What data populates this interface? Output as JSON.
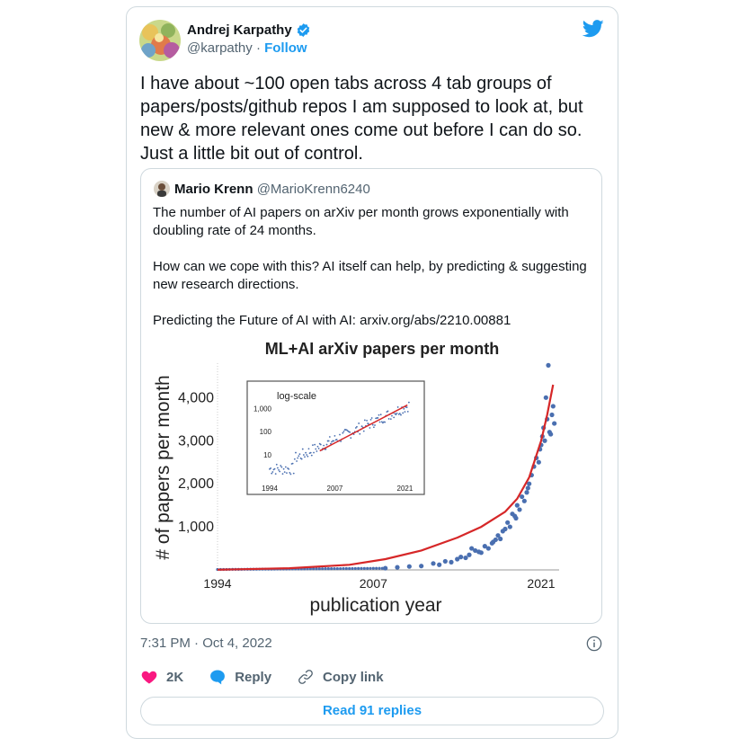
{
  "tweet": {
    "author_name": "Andrej Karpathy",
    "handle": "@karpathy",
    "separator": "·",
    "follow_label": "Follow",
    "text": "I have about ~100 open tabs across 4 tab groups of papers/posts/github repos I am supposed to look at, but new & more relevant ones come out before I can do so. Just a little bit out of control.",
    "timestamp": "7:31 PM · Oct 4, 2022",
    "like_count": "2K",
    "reply_label": "Reply",
    "copy_link_label": "Copy link",
    "read_replies_label": "Read 91 replies",
    "accent_color": "#1d9bf0",
    "like_color": "#f91880"
  },
  "quote": {
    "author_name": "Mario Krenn",
    "handle": "@MarioKrenn6240",
    "paragraphs": [
      "The number of AI papers on arXiv per month grows exponentially with doubling rate of 24 months.",
      "How can we cope with this? AI itself can help, by predicting & suggesting new research directions.",
      "Predicting the Future of AI with AI: arxiv.org/abs/2210.00881"
    ]
  },
  "chart_data": [
    {
      "type": "scatter",
      "title": "ML+AI arXiv papers per month",
      "xlabel": "publication year",
      "ylabel": "# of papers per month",
      "xticks": [
        "1994",
        "2007",
        "2021"
      ],
      "yticks": [
        "1,000",
        "2,000",
        "3,000",
        "4,000"
      ],
      "xlim": [
        1994,
        2022.5
      ],
      "ylim": [
        0,
        4800
      ],
      "fit_line_color": "#d62728",
      "point_color": "#4a6fb0",
      "series": [
        {
          "points": [
            [
              2008,
              40
            ],
            [
              2009,
              60
            ],
            [
              2010,
              80
            ],
            [
              2011,
              90
            ],
            [
              2012,
              150
            ],
            [
              2012.5,
              120
            ],
            [
              2013,
              200
            ],
            [
              2013.5,
              180
            ],
            [
              2014,
              250
            ],
            [
              2014.3,
              300
            ],
            [
              2014.7,
              280
            ],
            [
              2015,
              350
            ],
            [
              2015.2,
              500
            ],
            [
              2015.5,
              450
            ],
            [
              2015.8,
              420
            ],
            [
              2016,
              400
            ],
            [
              2016.3,
              550
            ],
            [
              2016.6,
              500
            ],
            [
              2016.9,
              620
            ],
            [
              2017,
              650
            ],
            [
              2017.2,
              700
            ],
            [
              2017.4,
              800
            ],
            [
              2017.6,
              720
            ],
            [
              2017.8,
              900
            ],
            [
              2018,
              950
            ],
            [
              2018.2,
              1100
            ],
            [
              2018.4,
              1000
            ],
            [
              2018.6,
              1300
            ],
            [
              2018.8,
              1250
            ],
            [
              2019,
              1500
            ],
            [
              2019.2,
              1400
            ],
            [
              2019.4,
              1700
            ],
            [
              2019.6,
              1600
            ],
            [
              2019.8,
              1800
            ],
            [
              2020,
              2000
            ],
            [
              2020.2,
              2200
            ],
            [
              2020.4,
              2400
            ],
            [
              2020.6,
              2600
            ],
            [
              2020.8,
              2500
            ],
            [
              2021,
              2900
            ],
            [
              2021.1,
              3100
            ],
            [
              2021.2,
              3300
            ],
            [
              2021.3,
              3000
            ],
            [
              2021.5,
              3500
            ],
            [
              2021.7,
              3200
            ],
            [
              2021.9,
              3600
            ],
            [
              2022,
              3800
            ],
            [
              2022.1,
              3400
            ],
            [
              2021.4,
              4000
            ],
            [
              2021.6,
              4750
            ],
            [
              2020.9,
              2800
            ],
            [
              2021.8,
              3150
            ],
            [
              2019.9,
              1900
            ],
            [
              2018.9,
              1200
            ]
          ]
        }
      ],
      "fit": [
        [
          1994,
          5
        ],
        [
          2000,
          40
        ],
        [
          2005,
          120
        ],
        [
          2008,
          250
        ],
        [
          2011,
          450
        ],
        [
          2014,
          750
        ],
        [
          2016,
          1000
        ],
        [
          2018,
          1350
        ],
        [
          2019,
          1650
        ],
        [
          2020,
          2150
        ],
        [
          2021,
          3000
        ],
        [
          2021.5,
          3600
        ],
        [
          2022,
          4300
        ]
      ]
    },
    {
      "type": "scatter",
      "title": "log-scale",
      "xticks": [
        "1994",
        "2007",
        "2021"
      ],
      "yticks": [
        "10",
        "100",
        "1,000"
      ],
      "scale": "log",
      "xlim": [
        1994,
        2022
      ],
      "ylim": [
        1,
        3000
      ],
      "fit_line_color": "#d62728",
      "point_color": "#4a6fb0"
    }
  ]
}
